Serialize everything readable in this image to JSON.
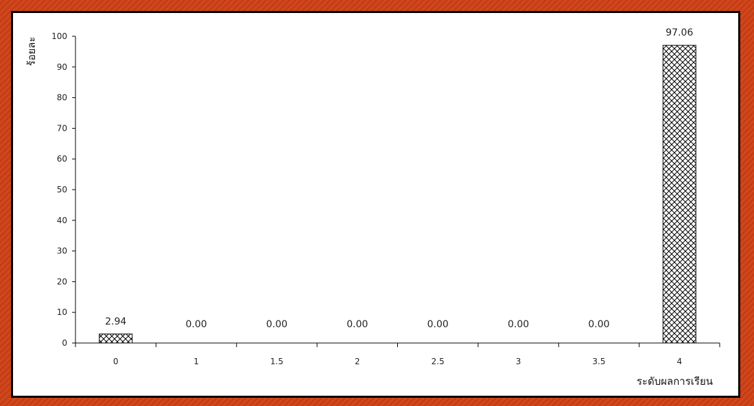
{
  "chart_data": {
    "type": "bar",
    "categories": [
      "0",
      "1",
      "1.5",
      "2",
      "2.5",
      "3",
      "3.5",
      "4"
    ],
    "values": [
      2.94,
      0.0,
      0.0,
      0.0,
      0.0,
      0.0,
      0.0,
      97.06
    ],
    "data_labels": [
      "2.94",
      "0.00",
      "0.00",
      "0.00",
      "0.00",
      "0.00",
      "0.00",
      "97.06"
    ],
    "title": "",
    "xlabel": "ระดับผลการเรียน",
    "ylabel": "ร้อยละ",
    "ylim": [
      0,
      100
    ],
    "yticks": [
      0,
      10,
      20,
      30,
      40,
      50,
      60,
      70,
      80,
      90,
      100
    ],
    "grid": false,
    "bar_fill": "crosshatch",
    "colors": {
      "bar_stroke": "#000000",
      "frame": "#000000",
      "background_border": "#d2481e"
    }
  }
}
